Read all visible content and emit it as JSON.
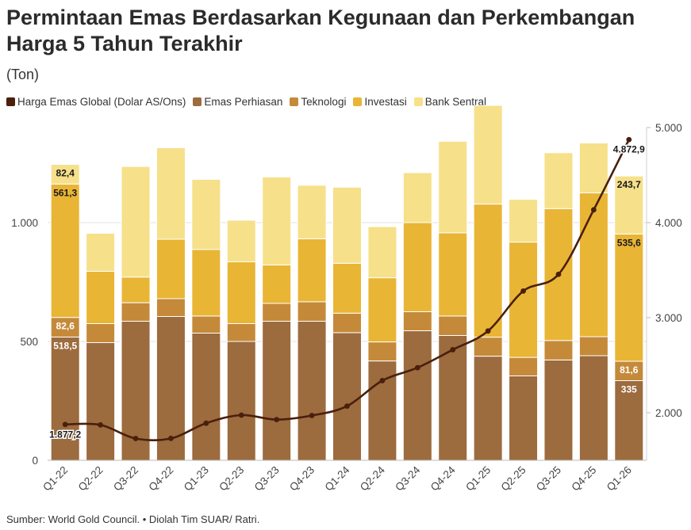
{
  "title": "Permintaan Emas Berdasarkan Kegunaan dan Perkembangan Harga 5 Tahun Terakhir",
  "subtitle": "(Ton)",
  "source": "Sumber: World Gold Council. • Diolah Tim SUAR/ Ratri.",
  "legend": [
    {
      "label": "Harga Emas Global (Dolar AS/Ons)",
      "color": "#4a1f0c"
    },
    {
      "label": "Emas Perhiasan",
      "color": "#9c6b3e"
    },
    {
      "label": "Teknologi",
      "color": "#c48a3a"
    },
    {
      "label": "Investasi",
      "color": "#e9b535"
    },
    {
      "label": "Bank Sentral",
      "color": "#f6e08a"
    }
  ],
  "chart_data": {
    "type": "bar",
    "stacked": true,
    "categories": [
      "Q1-22",
      "Q2-22",
      "Q3-22",
      "Q4-22",
      "Q1-23",
      "Q2-23",
      "Q3-23",
      "Q4-23",
      "Q1-24",
      "Q2-24",
      "Q3-24",
      "Q4-24",
      "Q1-25",
      "Q2-25",
      "Q3-25",
      "Q4-25",
      "Q1-26"
    ],
    "series": [
      {
        "name": "Emas Perhiasan",
        "color": "#9c6b3e",
        "values": [
          518.5,
          495,
          585,
          605,
          535,
          500,
          585,
          585,
          537,
          418,
          545,
          525,
          438,
          355,
          422,
          440,
          335
        ]
      },
      {
        "name": "Teknologi",
        "color": "#c48a3a",
        "values": [
          82.6,
          80,
          78,
          75,
          72,
          75,
          75,
          82,
          82,
          80,
          80,
          82,
          80,
          78,
          82,
          80,
          81.6
        ]
      },
      {
        "name": "Investasi",
        "color": "#e9b535",
        "values": [
          561.3,
          220,
          108,
          250,
          280,
          260,
          162,
          265,
          210,
          270,
          375,
          350,
          560,
          485,
          555,
          605,
          535.6
        ]
      },
      {
        "name": "Bank Sentral",
        "color": "#f6e08a",
        "values": [
          82.4,
          160,
          465,
          385,
          295,
          175,
          370,
          225,
          320,
          215,
          210,
          385,
          415,
          180,
          235,
          210,
          243.7
        ]
      }
    ],
    "line": {
      "name": "Harga Emas Global (Dolar AS/Ons)",
      "color": "#4a1f0c",
      "values": [
        1877.2,
        1872,
        1729,
        1730,
        1890,
        1975,
        1928,
        1971,
        2070,
        2338,
        2474,
        2663,
        2860,
        3280,
        3456,
        4135,
        4872.9
      ]
    },
    "y_left": {
      "min": 0,
      "max": 1400,
      "ticks": [
        0,
        500,
        1000
      ],
      "tick_labels": [
        "0",
        "500",
        "1.000"
      ]
    },
    "y_right": {
      "min": 1500,
      "max": 5000,
      "ticks": [
        2000,
        3000,
        4000,
        5000
      ],
      "tick_labels": [
        "2.000",
        "3.000",
        "4.000",
        "5.000"
      ]
    },
    "data_labels": {
      "first_bar": [
        "518,5",
        "82,6",
        "561,3",
        "82,4"
      ],
      "last_bar": [
        "335",
        "81,6",
        "535,6",
        "243,7"
      ],
      "line_first": "1.877,2",
      "line_last": "4.872,9"
    }
  }
}
